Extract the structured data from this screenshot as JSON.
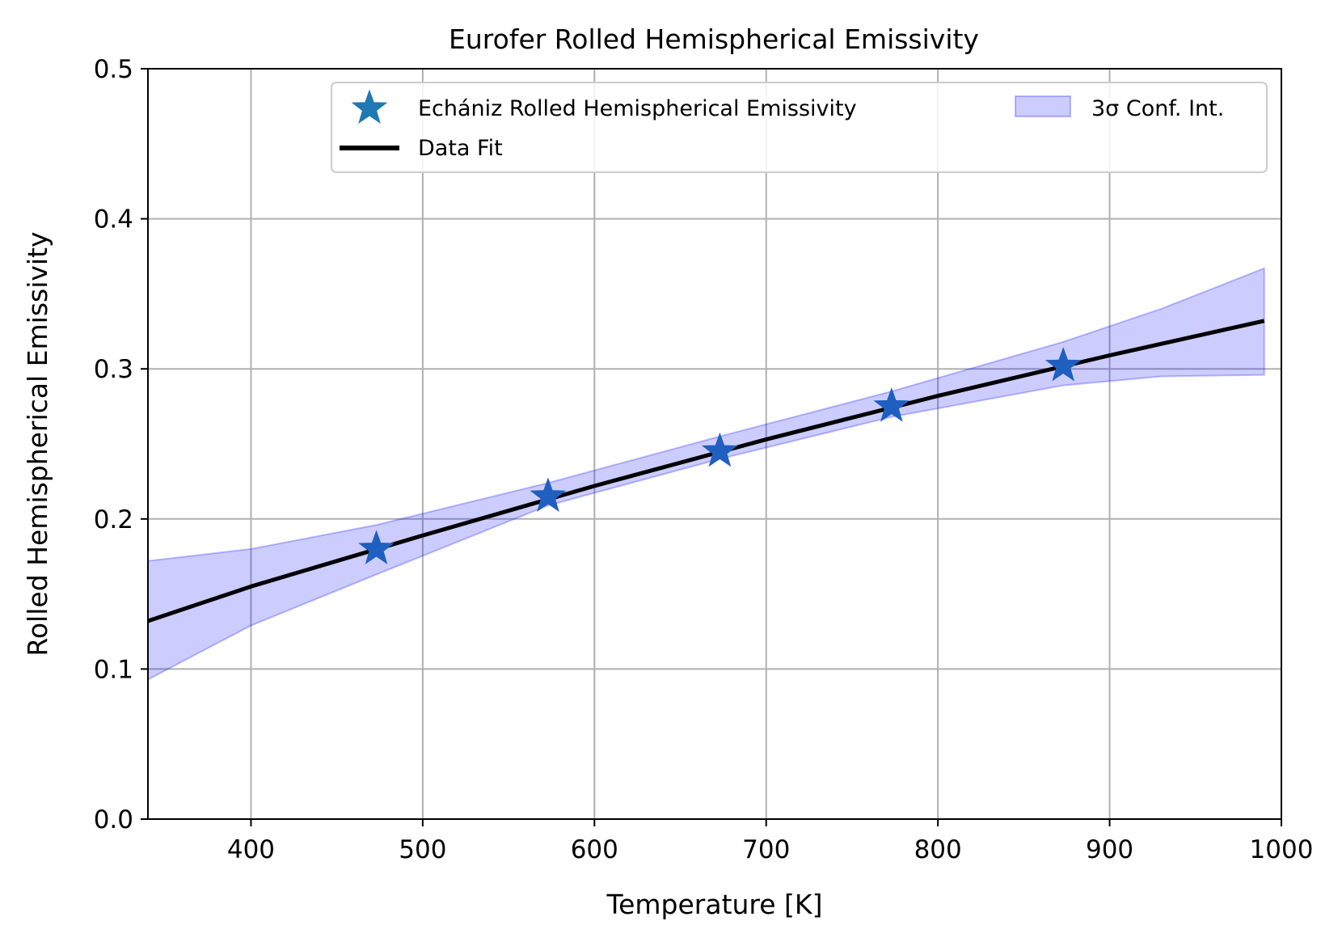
{
  "chart_data": {
    "type": "line",
    "title": "Eurofer Rolled Hemispherical Emissivity",
    "xlabel": "Temperature [K]",
    "ylabel": "Rolled Hemispherical Emissivity",
    "xlim": [
      340,
      1000
    ],
    "ylim": [
      0.0,
      0.5
    ],
    "xticks": [
      400,
      500,
      600,
      700,
      800,
      900,
      1000
    ],
    "xtick_labels": [
      "400",
      "500",
      "600",
      "700",
      "800",
      "900",
      "1000"
    ],
    "yticks": [
      0.0,
      0.1,
      0.2,
      0.3,
      0.4,
      0.5
    ],
    "ytick_labels": [
      "0.0",
      "0.1",
      "0.2",
      "0.3",
      "0.4",
      "0.5"
    ],
    "grid": true,
    "legend_position": "top-right",
    "series": [
      {
        "name": "Echániz Rolled Hemispherical Emissivity",
        "kind": "scatter",
        "marker": "star",
        "color": "#1f77b4",
        "x": [
          473,
          573,
          673,
          773,
          873
        ],
        "y": [
          0.18,
          0.215,
          0.245,
          0.275,
          0.302
        ]
      },
      {
        "name": "Data Fit",
        "kind": "line",
        "color": "#000000",
        "x": [
          340,
          400,
          500,
          600,
          700,
          800,
          900,
          990
        ],
        "y": [
          0.132,
          0.155,
          0.189,
          0.222,
          0.253,
          0.282,
          0.309,
          0.332
        ]
      },
      {
        "name": "3σ Conf. Int.",
        "kind": "band",
        "color": "#0000ff",
        "x": [
          340,
          400,
          473,
          573,
          673,
          773,
          873,
          930,
          990
        ],
        "lower": [
          0.093,
          0.129,
          0.163,
          0.209,
          0.24,
          0.268,
          0.289,
          0.295,
          0.296
        ],
        "upper": [
          0.172,
          0.18,
          0.196,
          0.224,
          0.255,
          0.285,
          0.318,
          0.34,
          0.367
        ]
      }
    ]
  }
}
